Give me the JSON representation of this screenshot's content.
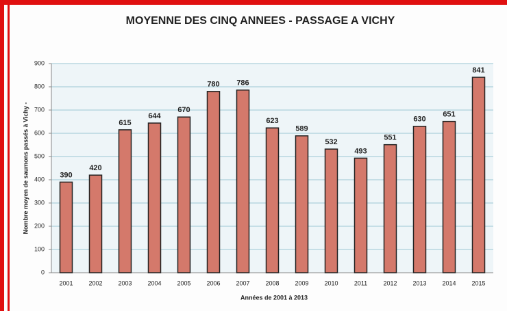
{
  "chart_data": {
    "type": "bar",
    "title": "MOYENNE DES CINQ ANNEES - PASSAGE A VICHY",
    "x_label": "Années de 2001 à 2013",
    "y_label": "Nombre moyen de saumons passés à Vichy -",
    "categories": [
      "2001",
      "2002",
      "2003",
      "2004",
      "2005",
      "2006",
      "2007",
      "2008",
      "2009",
      "2010",
      "2011",
      "2012",
      "2013",
      "2014",
      "2015"
    ],
    "values": [
      390,
      420,
      615,
      644,
      670,
      780,
      786,
      623,
      589,
      532,
      493,
      551,
      630,
      651,
      841
    ],
    "color": "#d4796b",
    "ylim": [
      0,
      900
    ],
    "yticks": [
      0,
      100,
      200,
      300,
      400,
      500,
      600,
      700,
      800,
      900
    ],
    "grid": true
  }
}
